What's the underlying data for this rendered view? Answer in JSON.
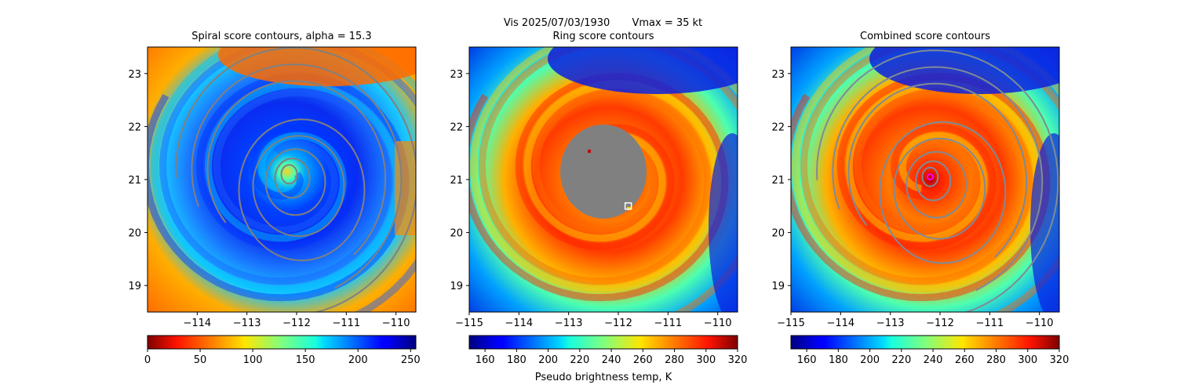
{
  "figure": {
    "suptitle_left": "Vis  2025/07/03/1930",
    "suptitle_right": "Vmax = 35 kt",
    "colorbar_label": "Pseudo brightness temp, K"
  },
  "chart_data": [
    {
      "type": "heatmap",
      "title": "Spiral score contours, alpha = 15.3",
      "xlim": [
        -115,
        -109.6
      ],
      "ylim": [
        18.5,
        23.5
      ],
      "xticks": [
        -114,
        -113,
        -112,
        -111,
        -110
      ],
      "xtick_labels": [
        "−114",
        "−113",
        "−112",
        "−111",
        "−110"
      ],
      "yticks": [
        19,
        20,
        21,
        22,
        23
      ],
      "ytick_labels": [
        "19",
        "20",
        "21",
        "22",
        "23"
      ],
      "colormap": "jet",
      "colorbar": {
        "min": 0,
        "max": 255,
        "ticks": [
          0,
          50,
          100,
          150,
          200,
          250
        ],
        "tick_labels": [
          "0",
          "50",
          "100",
          "150",
          "200",
          "250"
        ]
      },
      "contour_color": "#808080",
      "contour_center": [
        -112.15,
        21.1
      ]
    },
    {
      "type": "heatmap",
      "title": "Ring score contours",
      "xlim": [
        -115,
        -109.6
      ],
      "ylim": [
        18.5,
        23.5
      ],
      "xticks": [
        -115,
        -114,
        -113,
        -112,
        -111,
        -110
      ],
      "xtick_labels": [
        "−115",
        "−114",
        "−113",
        "−112",
        "−111",
        "−110"
      ],
      "yticks": [
        19,
        20,
        21,
        22,
        23
      ],
      "ytick_labels": [
        "19",
        "20",
        "21",
        "22",
        "23"
      ],
      "colormap": "jet_r",
      "colorbar": {
        "min": 150,
        "max": 320,
        "ticks": [
          160,
          180,
          200,
          220,
          240,
          260,
          280,
          300,
          320
        ],
        "tick_labels": [
          "160",
          "180",
          "200",
          "220",
          "240",
          "260",
          "280",
          "300",
          "320"
        ]
      },
      "mask_center": [
        -112.3,
        21.15
      ],
      "marker": {
        "x": -111.8,
        "y": 20.5,
        "shape": "square",
        "color": "#ffffff"
      }
    },
    {
      "type": "heatmap",
      "title": "Combined score contours",
      "xlim": [
        -115,
        -109.6
      ],
      "ylim": [
        18.5,
        23.5
      ],
      "xticks": [
        -115,
        -114,
        -113,
        -112,
        -111,
        -110
      ],
      "xtick_labels": [
        "−115",
        "−114",
        "−113",
        "−112",
        "−111",
        "−110"
      ],
      "yticks": [
        19,
        20,
        21,
        22,
        23
      ],
      "ytick_labels": [
        "19",
        "20",
        "21",
        "22",
        "23"
      ],
      "colormap": "jet_r",
      "colorbar": {
        "min": 150,
        "max": 320,
        "ticks": [
          160,
          180,
          200,
          220,
          240,
          260,
          280,
          300,
          320
        ],
        "tick_labels": [
          "160",
          "180",
          "200",
          "220",
          "240",
          "260",
          "280",
          "300",
          "320"
        ]
      },
      "contour_color": "#7f8a96",
      "contour_center": [
        -112.2,
        21.05
      ],
      "marker": {
        "x": -112.2,
        "y": 21.05,
        "shape": "circle",
        "color": "#ff00ff"
      }
    }
  ]
}
